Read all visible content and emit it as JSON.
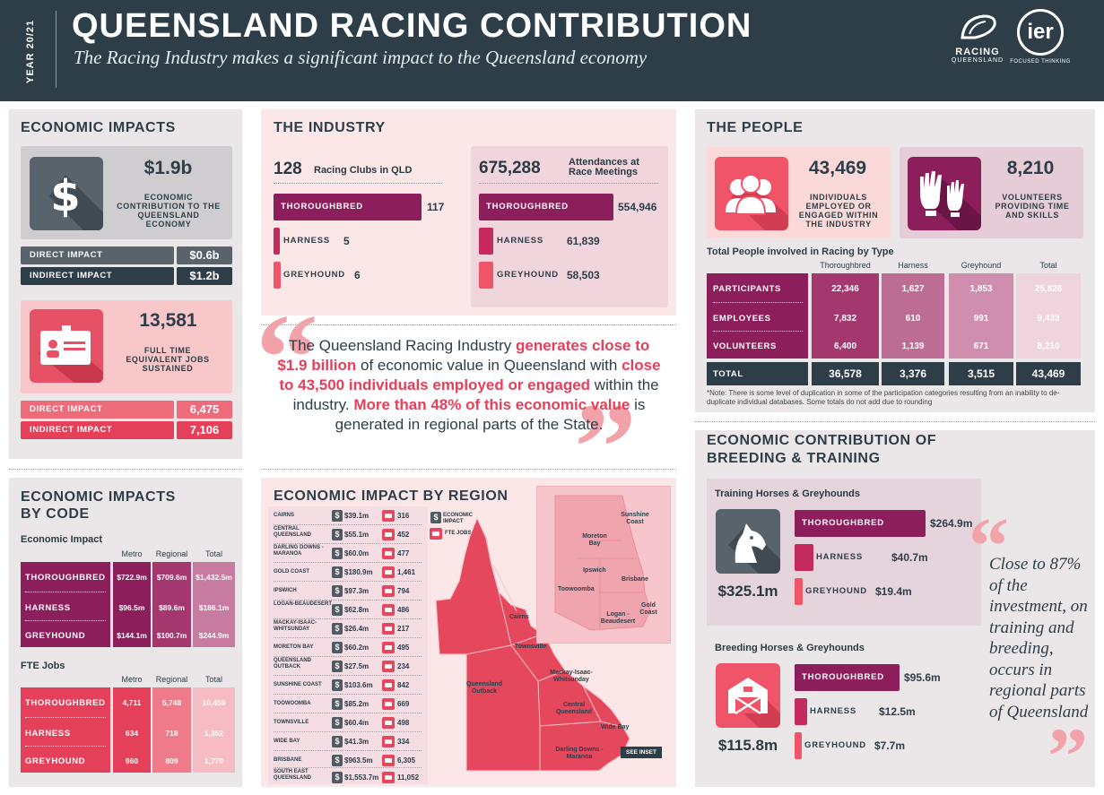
{
  "header": {
    "year": "YEAR 20/21",
    "title": "QUEENSLAND RACING CONTRIBUTION",
    "subtitle": "The Racing Industry makes a significant impact to the Queensland economy",
    "logo_rq_line1": "RACING",
    "logo_rq_line2": "QUEENSLAND",
    "logo_ier": "ier",
    "logo_ier_tag": "FOCUSED THINKING"
  },
  "economic_impacts": {
    "title": "ECONOMIC IMPACTS",
    "contribution_value": "$1.9b",
    "contribution_label": "ECONOMIC CONTRIBUTION TO THE QUEENSLAND ECONOMY",
    "direct_label": "DIRECT IMPACT",
    "direct_value": "$0.6b",
    "indirect_label": "INDIRECT IMPACT",
    "indirect_value": "$1.2b",
    "jobs_value": "13,581",
    "jobs_label": "FULL TIME EQUIVALENT JOBS SUSTAINED",
    "jobs_direct_label": "DIRECT IMPACT",
    "jobs_direct_value": "6,475",
    "jobs_indirect_label": "INDIRECT IMPACT",
    "jobs_indirect_value": "7,106"
  },
  "industry": {
    "title": "THE INDUSTRY",
    "clubs_value": "128",
    "clubs_label": "Racing Clubs in QLD",
    "clubs": [
      {
        "label": "THOROUGHBRED",
        "value": "117"
      },
      {
        "label": "HARNESS",
        "value": "5"
      },
      {
        "label": "GREYHOUND",
        "value": "6"
      }
    ],
    "attend_value": "675,288",
    "attend_label": "Attendances at Race Meetings",
    "attend": [
      {
        "label": "THOROUGHBRED",
        "value": "554,946"
      },
      {
        "label": "HARNESS",
        "value": "61,839"
      },
      {
        "label": "GREYHOUND",
        "value": "58,503"
      }
    ]
  },
  "quote": {
    "p1": "The Queensland Racing Industry ",
    "h1": "generates close to $1.9 billion",
    "p2": " of economic value in Queensland with ",
    "h2": "close to 43,500 individuals employed or engaged",
    "p3": " within the industry. ",
    "h3": "More than 48% of this economic value",
    "p4": " is generated in regional parts of the State."
  },
  "people": {
    "title": "THE PEOPLE",
    "individuals_value": "43,469",
    "individuals_label": "INDIVIDUALS EMPLOYED OR ENGAGED WITHIN THE INDUSTRY",
    "volunteers_value": "8,210",
    "volunteers_label": "VOLUNTEERS PROVIDING TIME AND SKILLS",
    "table_title": "Total People involved in Racing by Type",
    "columns": [
      "Thoroughbred",
      "Harness",
      "Greyhound",
      "Total"
    ],
    "rows": [
      {
        "label": "PARTICIPANTS",
        "values": [
          "22,346",
          "1,627",
          "1,853",
          "25,826"
        ]
      },
      {
        "label": "EMPLOYEES",
        "values": [
          "7,832",
          "610",
          "991",
          "9,433"
        ]
      },
      {
        "label": "VOLUNTEERS",
        "values": [
          "6,400",
          "1,139",
          "671",
          "8,210"
        ]
      }
    ],
    "total_label": "TOTAL",
    "total_values": [
      "36,578",
      "3,376",
      "3,515",
      "43,469"
    ],
    "note": "*Note: There is some level of duplication in some of the participation categories resulting from an inability to de-duplicate individual databases. Some totals do not add due to rounding"
  },
  "by_code": {
    "title_line1": "ECONOMIC IMPACTS",
    "title_line2": "BY CODE",
    "econ_title": "Economic Impact",
    "fte_title": "FTE Jobs",
    "columns": [
      "Metro",
      "Regional",
      "Total"
    ],
    "econ_rows": [
      {
        "label": "THOROUGHBRED",
        "values": [
          "$722.9m",
          "$709.6m",
          "$1,432.5m"
        ]
      },
      {
        "label": "HARNESS",
        "values": [
          "$96.5m",
          "$89.6m",
          "$186.1m"
        ]
      },
      {
        "label": "GREYHOUND",
        "values": [
          "$144.1m",
          "$100.7m",
          "$244.9m"
        ]
      }
    ],
    "fte_rows": [
      {
        "label": "THOROUGHBRED",
        "values": [
          "4,711",
          "5,748",
          "10,459"
        ]
      },
      {
        "label": "HARNESS",
        "values": [
          "634",
          "718",
          "1,352"
        ]
      },
      {
        "label": "GREYHOUND",
        "values": [
          "960",
          "809",
          "1,770"
        ]
      }
    ]
  },
  "region": {
    "title": "ECONOMIC IMPACT BY REGION",
    "legend_econ": "ECONOMIC IMPACT",
    "legend_fte": "FTE JOBS",
    "rows": [
      {
        "name": "CAIRNS",
        "value": "$39.1m",
        "jobs": "316"
      },
      {
        "name": "CENTRAL QUEENSLAND",
        "value": "$55.1m",
        "jobs": "452"
      },
      {
        "name": "DARLING DOWNS - MARANOA",
        "value": "$60.0m",
        "jobs": "477"
      },
      {
        "name": "GOLD COAST",
        "value": "$180.9m",
        "jobs": "1,461"
      },
      {
        "name": "IPSWICH",
        "value": "$97.3m",
        "jobs": "794"
      },
      {
        "name": "LOGAN-BEAUDESERT",
        "value": "$62.8m",
        "jobs": "486"
      },
      {
        "name": "MACKAY-ISAAC-WHITSUNDAY",
        "value": "$26.4m",
        "jobs": "217"
      },
      {
        "name": "MORETON BAY",
        "value": "$60.2m",
        "jobs": "495"
      },
      {
        "name": "QUEENSLAND OUTBACK",
        "value": "$27.5m",
        "jobs": "234"
      },
      {
        "name": "SUNSHINE COAST",
        "value": "$103.6m",
        "jobs": "842"
      },
      {
        "name": "TOOWOOMBA",
        "value": "$85.2m",
        "jobs": "669"
      },
      {
        "name": "TOWNSVILLE",
        "value": "$60.4m",
        "jobs": "498"
      },
      {
        "name": "WIDE BAY",
        "value": "$41.3m",
        "jobs": "334"
      },
      {
        "name": "BRISBANE",
        "value": "$963.5m",
        "jobs": "6,305"
      },
      {
        "name": "SOUTH EAST QUEENSLAND",
        "value": "$1,553.7m",
        "jobs": "11,052"
      }
    ],
    "map_labels": {
      "cairns": "Cairns",
      "townsville": "Townsville",
      "outback": "Queensland Outback",
      "mackay": "Mackay-Isaac-Whitsunday",
      "central": "Central Queensland",
      "widebay": "Wide Bay",
      "darling": "Darling Downs - Maranoa"
    },
    "inset_labels": {
      "sunshine": "Sunshine Coast",
      "moreton": "Moreton Bay",
      "ipswich": "Ipswich",
      "brisbane": "Brisbane",
      "toowoomba": "Toowoomba",
      "gold": "Gold Coast",
      "logan": "Logan - Beaudesert"
    },
    "see_inset": "SEE INSET"
  },
  "breeding": {
    "title_line1": "ECONOMIC CONTRIBUTION OF",
    "title_line2": "BREEDING & TRAINING",
    "training_title": "Training Horses & Greyhounds",
    "training_total": "$325.1m",
    "training": [
      {
        "label": "THOROUGHBRED",
        "value": "$264.9m"
      },
      {
        "label": "HARNESS",
        "value": "$40.7m"
      },
      {
        "label": "GREYHOUND",
        "value": "$19.4m"
      }
    ],
    "breeding_title": "Breeding Horses & Greyhounds",
    "breeding_total": "$115.8m",
    "breeding": [
      {
        "label": "THOROUGHBRED",
        "value": "$95.6m"
      },
      {
        "label": "HARNESS",
        "value": "$12.5m"
      },
      {
        "label": "GREYHOUND",
        "value": "$7.7m"
      }
    ],
    "quote": "Close to 87% of the investment, on training and breeding, occurs in regional parts of Queensland"
  },
  "colors": {
    "navy": "#2d3e48",
    "plum": "#8b1e5b",
    "raspberry": "#c42a5d",
    "pink": "#e5475d",
    "blush": "#f39aa2"
  }
}
